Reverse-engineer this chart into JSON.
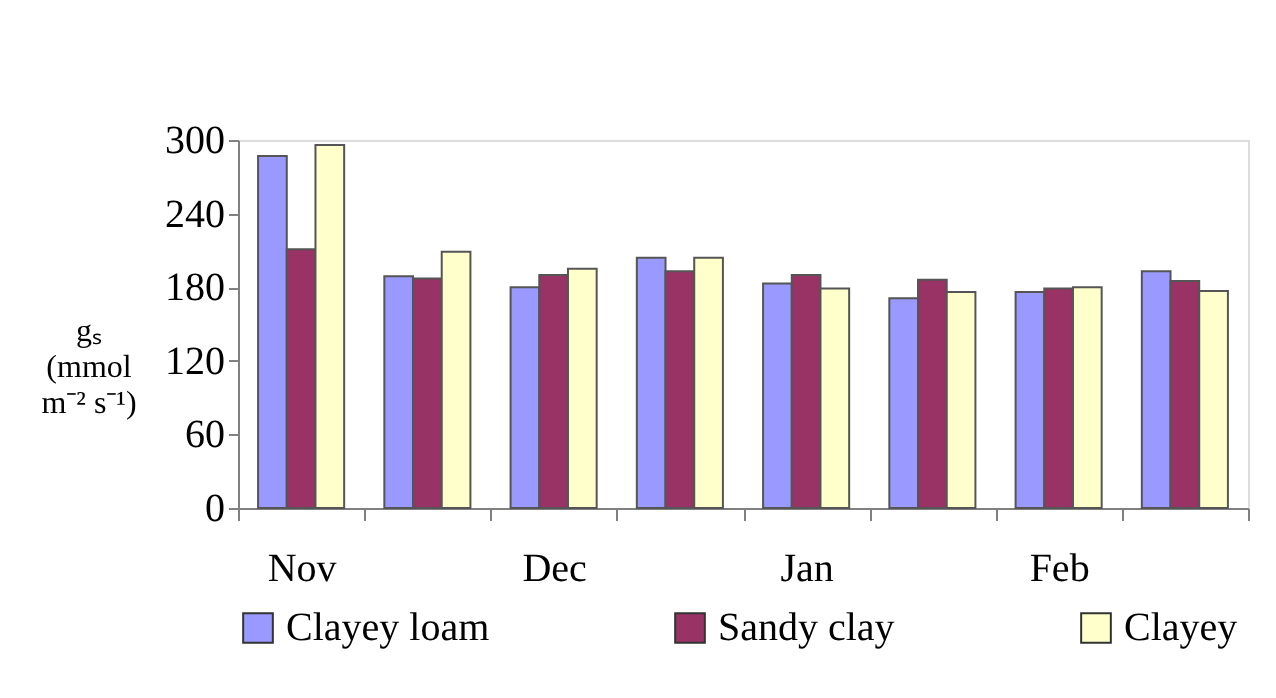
{
  "chart_data": {
    "type": "bar",
    "ylabel": "gₛ (mmol m⁻² s⁻¹)",
    "categories": [
      "Nov",
      null,
      "Dec",
      null,
      "Jan",
      null,
      "Feb",
      null
    ],
    "series": [
      {
        "name": "Clayey loam",
        "color": "#9999ff",
        "values": [
          287,
          189,
          180,
          204,
          183,
          171,
          176,
          193
        ]
      },
      {
        "name": "Sandy clay",
        "color": "#993366",
        "values": [
          211,
          187,
          190,
          193,
          190,
          186,
          179,
          185
        ]
      },
      {
        "name": "Clayey",
        "color": "#ffffcc",
        "values": [
          296,
          209,
          195,
          204,
          179,
          176,
          180,
          177
        ]
      }
    ],
    "ylim": [
      0,
      300
    ],
    "yticks": [
      0,
      60,
      120,
      180,
      240,
      300
    ],
    "grid": false,
    "legend": "bottom"
  }
}
